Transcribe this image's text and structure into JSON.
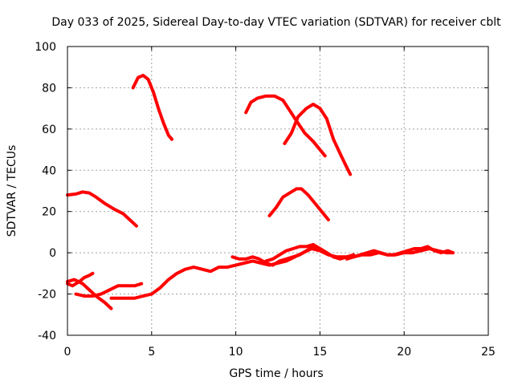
{
  "chart_data": {
    "type": "line",
    "title": "Day 033 of 2025, Sidereal Day-to-day VTEC variation (SDTVAR) for receiver cblt",
    "xlabel": "GPS time / hours",
    "ylabel": "SDTVAR / TECUs",
    "xlim": [
      0,
      25
    ],
    "ylim": [
      -40,
      100
    ],
    "xticks": [
      0,
      5,
      10,
      15,
      20,
      25
    ],
    "yticks": [
      -40,
      -20,
      0,
      20,
      40,
      60,
      80,
      100
    ],
    "grid": true,
    "legend": "none",
    "color": "#ff0000",
    "series": [
      {
        "name": "trace-1",
        "x": [
          0,
          0.5,
          0.9,
          1.3,
          1.7,
          2.2,
          2.8,
          3.3,
          3.7,
          4.1
        ],
        "y": [
          28,
          28.5,
          29.5,
          29,
          27,
          24,
          21,
          19,
          16,
          13
        ]
      },
      {
        "name": "trace-2",
        "x": [
          3.9,
          4.2,
          4.5,
          4.8,
          5.1,
          5.4,
          5.7,
          6.0,
          6.2
        ],
        "y": [
          80,
          85,
          86,
          84,
          78,
          70,
          63,
          57,
          55
        ]
      },
      {
        "name": "trace-3",
        "x": [
          10.6,
          10.9,
          11.3,
          11.8,
          12.3,
          12.8,
          13.2,
          13.6,
          14.1,
          14.6,
          15.0,
          15.3
        ],
        "y": [
          68,
          73,
          75,
          76,
          76,
          74,
          69,
          64,
          58,
          54,
          50,
          47
        ]
      },
      {
        "name": "trace-4",
        "x": [
          12.9,
          13.3,
          13.7,
          14.2,
          14.6,
          15.0,
          15.4,
          15.8,
          16.2,
          16.5,
          16.8
        ],
        "y": [
          53,
          58,
          66,
          70,
          72,
          70,
          65,
          55,
          48,
          43,
          38
        ]
      },
      {
        "name": "trace-5",
        "x": [
          12.0,
          12.4,
          12.8,
          13.2,
          13.6,
          13.9,
          14.3,
          14.7,
          15.1,
          15.5
        ],
        "y": [
          18,
          22,
          27,
          29,
          31,
          31,
          28,
          24,
          20,
          16
        ]
      },
      {
        "name": "trace-6",
        "x": [
          0,
          0.3,
          0.7,
          1.0,
          1.3,
          1.5
        ],
        "y": [
          -15,
          -16,
          -14,
          -12,
          -11,
          -10
        ]
      },
      {
        "name": "trace-7",
        "x": [
          0,
          0.4,
          0.9,
          1.3,
          1.7,
          2.2,
          2.6
        ],
        "y": [
          -14,
          -13,
          -15,
          -18,
          -21,
          -24,
          -27
        ]
      },
      {
        "name": "trace-8",
        "x": [
          0.5,
          1.0,
          1.5,
          2.0,
          2.5,
          3.0,
          3.5,
          4.0,
          4.4
        ],
        "y": [
          -20,
          -21,
          -21,
          -20,
          -18,
          -16,
          -16,
          -16,
          -15
        ]
      },
      {
        "name": "trace-9",
        "x": [
          2.6,
          3.0,
          3.5,
          4.0,
          4.5,
          5.0,
          5.5,
          6.0,
          6.5,
          7.0,
          7.5,
          8.0,
          8.5,
          9.0,
          9.5,
          10.0,
          10.5,
          11.0,
          11.5,
          12.0,
          12.5,
          13.0,
          13.5,
          14.0,
          14.5,
          15.0,
          15.5,
          16.0,
          16.5,
          17.0,
          17.5,
          18.0,
          18.5,
          19.0,
          19.5,
          20.0,
          20.5,
          21.0,
          21.5,
          22.0,
          22.5,
          22.9
        ],
        "y": [
          -22,
          -22,
          -22,
          -22,
          -21,
          -20,
          -17,
          -13,
          -10,
          -8,
          -7,
          -8,
          -9,
          -7,
          -7,
          -6,
          -5,
          -4,
          -5,
          -6,
          -5,
          -4,
          -2,
          0,
          2,
          1,
          -1,
          -2,
          -2,
          -2,
          -1,
          -1,
          0,
          -1,
          -1,
          0,
          0,
          1,
          2,
          1,
          0,
          0
        ]
      },
      {
        "name": "trace-10",
        "x": [
          9.8,
          10.2,
          10.6,
          11.0,
          11.4,
          11.8,
          12.2,
          12.6,
          13.0,
          13.4,
          13.8,
          14.2,
          14.6,
          15.0,
          15.4,
          15.8,
          16.2,
          16.6,
          17.0
        ],
        "y": [
          -2,
          -3,
          -3,
          -2,
          -3,
          -5,
          -6,
          -4,
          -3,
          -2,
          -1,
          1,
          3,
          2,
          0,
          -2,
          -3,
          -2,
          -1
        ]
      },
      {
        "name": "trace-11",
        "x": [
          11.8,
          12.2,
          12.6,
          13.0,
          13.4,
          13.8,
          14.2,
          14.6,
          15.0,
          15.4
        ],
        "y": [
          -4,
          -3,
          -1,
          1,
          2,
          3,
          3,
          4,
          2,
          0
        ]
      },
      {
        "name": "trace-12",
        "x": [
          16.6,
          17.0,
          17.4,
          17.8,
          18.2,
          18.6,
          19.0,
          19.4,
          19.8,
          20.2,
          20.6,
          21.0,
          21.4,
          21.8,
          22.2,
          22.6,
          22.9
        ],
        "y": [
          -3,
          -2,
          -1,
          0,
          1,
          0,
          -1,
          -1,
          0,
          1,
          2,
          2,
          3,
          1,
          0,
          1,
          0
        ]
      }
    ]
  }
}
